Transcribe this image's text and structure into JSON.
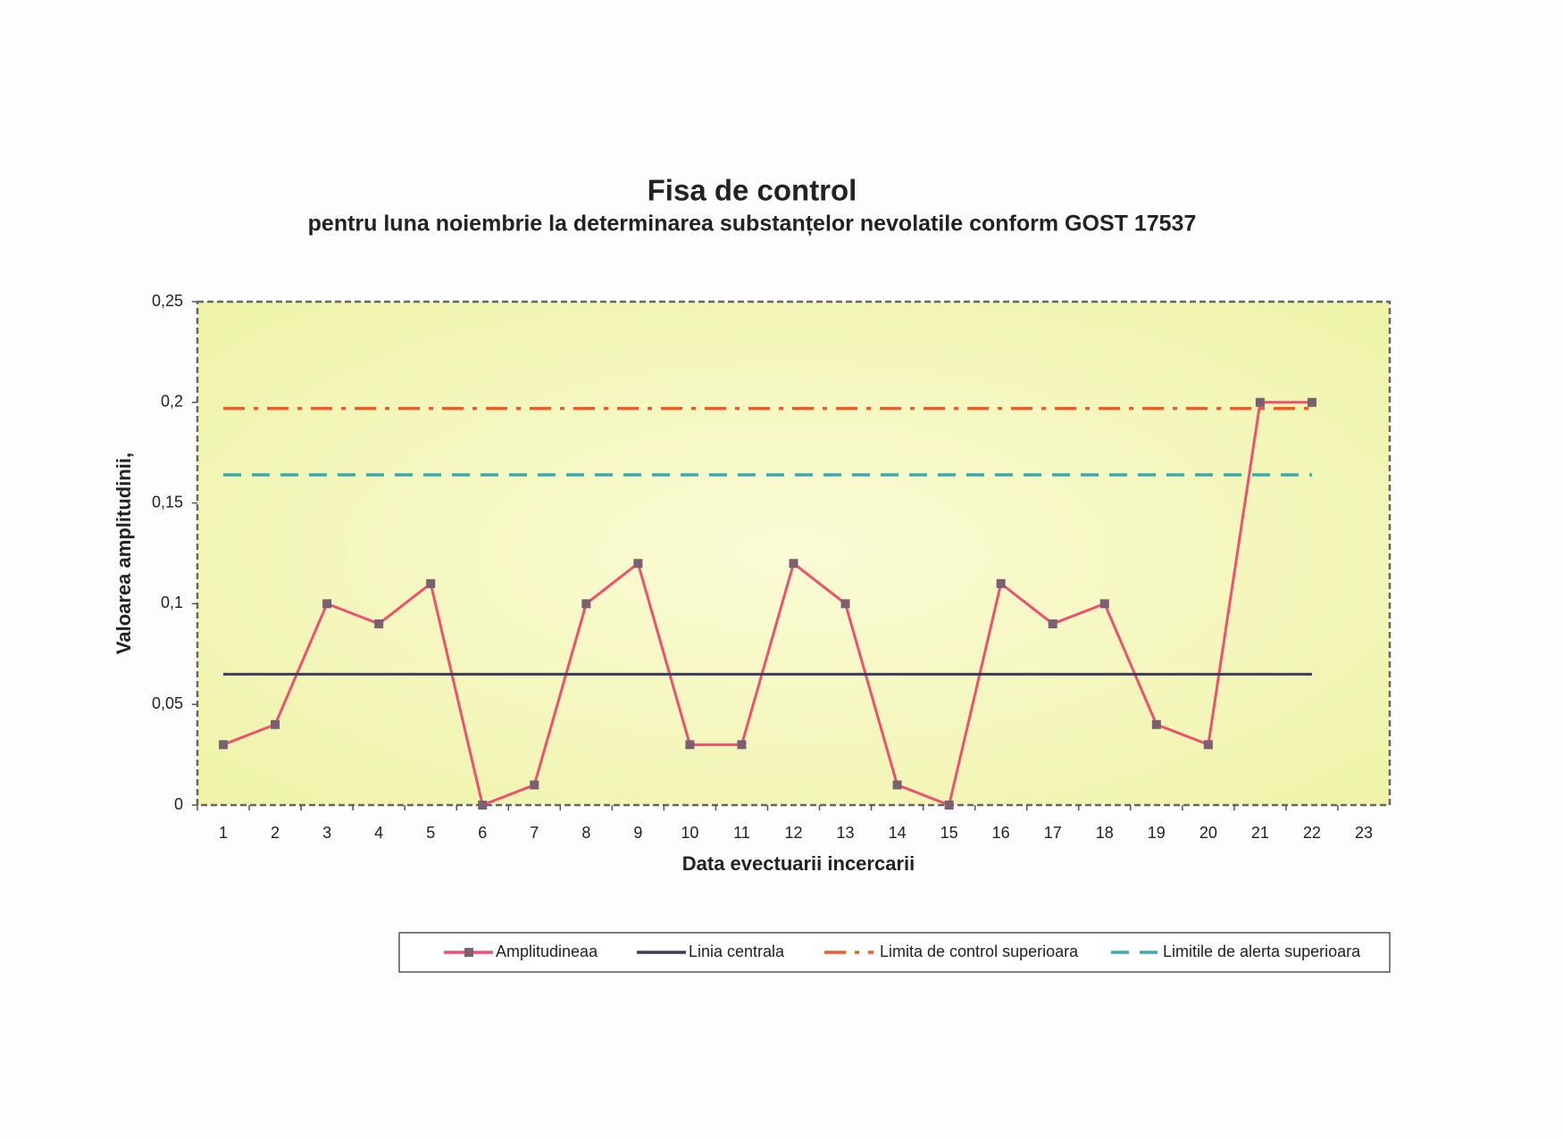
{
  "chart_data": {
    "type": "line",
    "title": "Fisa de control",
    "subtitle": "pentru luna noiembrie la determinarea substanțelor nevolatile conform GOST 17537",
    "x_label": "Data evectuarii incercarii",
    "y_label": "Valoarea amplitudinii,",
    "categories": [
      "1",
      "2",
      "3",
      "4",
      "5",
      "6",
      "7",
      "8",
      "9",
      "10",
      "11",
      "12",
      "13",
      "14",
      "15",
      "16",
      "17",
      "18",
      "19",
      "20",
      "21",
      "22",
      "23"
    ],
    "series": [
      {
        "name": "Amplitudineaa",
        "color": "#f0506e",
        "marker": "square",
        "style": "solid",
        "values": [
          0.03,
          0.04,
          0.1,
          0.09,
          0.11,
          0,
          0.01,
          0.1,
          0.12,
          0.03,
          0.03,
          0.12,
          0.1,
          0.01,
          0,
          0.11,
          0.09,
          0.1,
          0.04,
          0.03,
          0.2,
          0.2,
          null
        ]
      },
      {
        "name": "Linia centrala",
        "color": "#3c3c5a",
        "style": "solid",
        "values": [
          0.065,
          0.065,
          0.065,
          0.065,
          0.065,
          0.065,
          0.065,
          0.065,
          0.065,
          0.065,
          0.065,
          0.065,
          0.065,
          0.065,
          0.065,
          0.065,
          0.065,
          0.065,
          0.065,
          0.065,
          0.065,
          0.065,
          null
        ]
      },
      {
        "name": "Limita de control superioara",
        "color": "#f05a28",
        "style": "dash-dot",
        "values": [
          0.197,
          0.197,
          0.197,
          0.197,
          0.197,
          0.197,
          0.197,
          0.197,
          0.197,
          0.197,
          0.197,
          0.197,
          0.197,
          0.197,
          0.197,
          0.197,
          0.197,
          0.197,
          0.197,
          0.197,
          0.197,
          0.197,
          null
        ]
      },
      {
        "name": "Limitile de alerta superioara",
        "color": "#3aaab0",
        "style": "dash",
        "values": [
          0.164,
          0.164,
          0.164,
          0.164,
          0.164,
          0.164,
          0.164,
          0.164,
          0.164,
          0.164,
          0.164,
          0.164,
          0.164,
          0.164,
          0.164,
          0.164,
          0.164,
          0.164,
          0.164,
          0.164,
          0.164,
          0.164,
          null
        ]
      }
    ],
    "ylim": [
      0,
      0.25
    ],
    "yticks": [
      0,
      {
        "value": 0.05,
        "label": "0,05"
      },
      {
        "value": 0.1,
        "label": "0,1"
      },
      {
        "value": 0.15,
        "label": "0,15"
      },
      {
        "value": 0.2,
        "label": "0,2"
      },
      {
        "value": 0.25,
        "label": "0,25"
      }
    ],
    "grid": false,
    "legend": "bottom"
  }
}
